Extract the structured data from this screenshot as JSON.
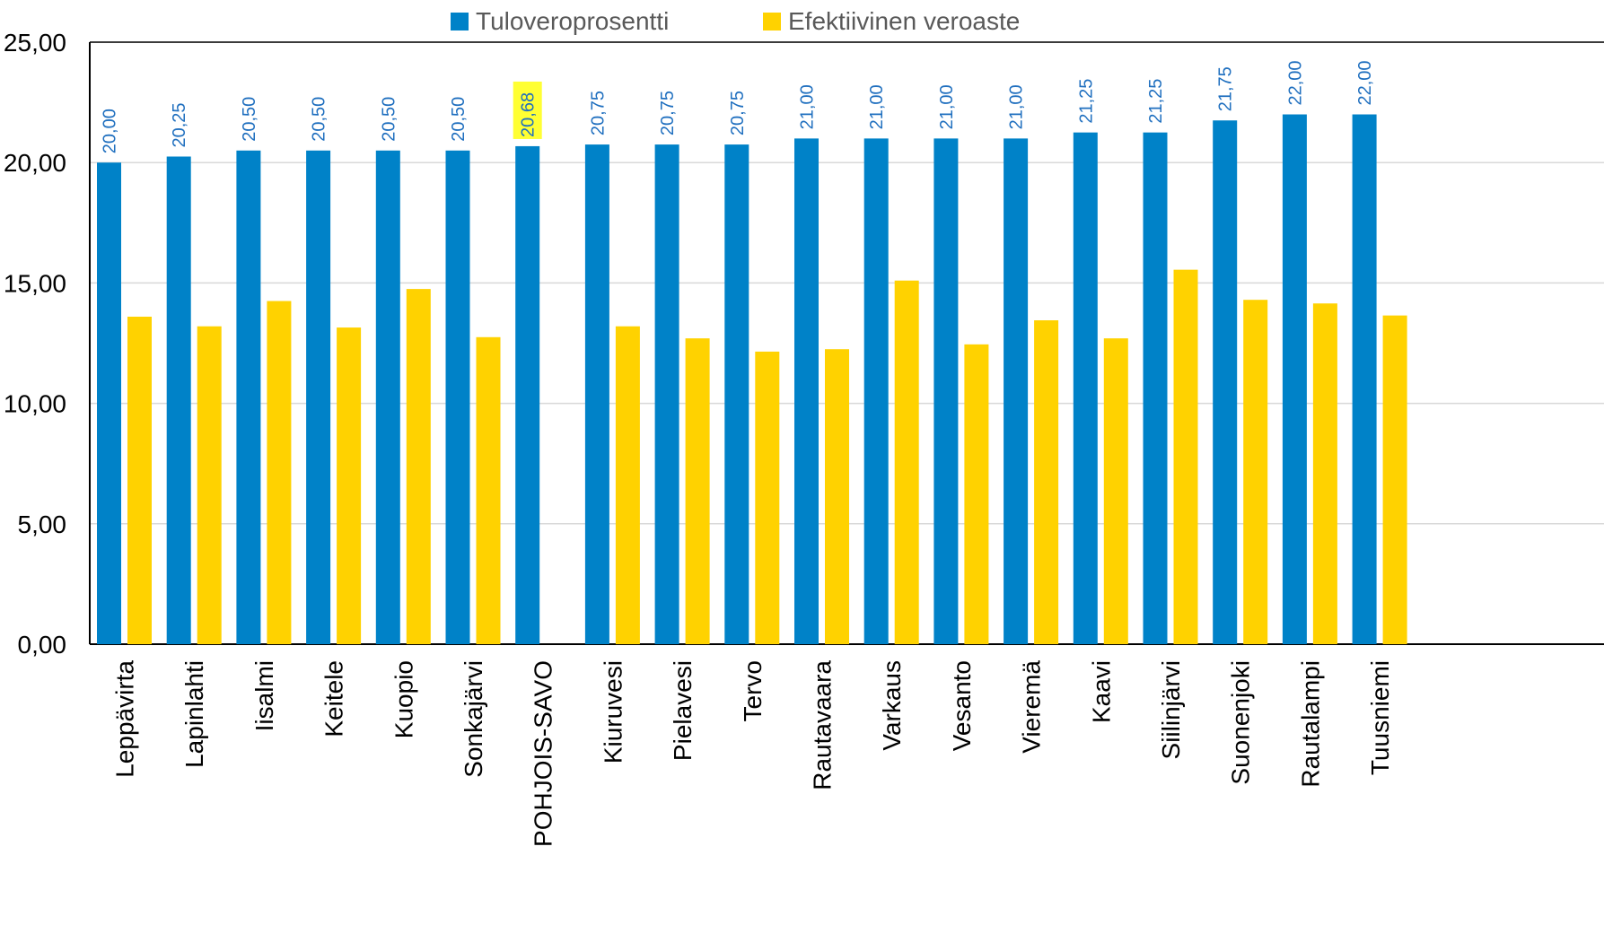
{
  "chart_data": {
    "type": "bar",
    "categories": [
      "Leppävirta",
      "Lapinlahti",
      "Iisalmi",
      "Keitele",
      "Kuopio",
      "Sonkajärvi",
      "POHJOIS-SAVO",
      "Kiuruvesi",
      "Pielavesi",
      "Tervo",
      "Rautavaara",
      "Varkaus",
      "Vesanto",
      "Vieremä",
      "Kaavi",
      "Siilinjärvi",
      "Suonenjoki",
      "Rautalampi",
      "Tuusniemi"
    ],
    "series": [
      {
        "name": "Tuloveroprosentti",
        "color": "#0082C8",
        "values": [
          20.0,
          20.25,
          20.5,
          20.5,
          20.5,
          20.5,
          20.68,
          20.75,
          20.75,
          20.75,
          21.0,
          21.0,
          21.0,
          21.0,
          21.25,
          21.25,
          21.75,
          22.0,
          22.0
        ],
        "labels": [
          "20,00",
          "20,25",
          "20,50",
          "20,50",
          "20,50",
          "20,50",
          "20,68",
          "20,75",
          "20,75",
          "20,75",
          "21,00",
          "21,00",
          "21,00",
          "21,00",
          "21,25",
          "21,25",
          "21,75",
          "22,00",
          "22,00"
        ]
      },
      {
        "name": "Efektiivinen veroaste",
        "color": "#FFD200",
        "values": [
          13.6,
          13.2,
          14.25,
          13.15,
          14.75,
          12.75,
          null,
          13.2,
          12.7,
          12.15,
          12.25,
          15.1,
          12.45,
          13.45,
          12.7,
          15.55,
          14.3,
          14.15,
          13.65
        ]
      }
    ],
    "highlight": {
      "category": "POHJOIS-SAVO",
      "label_background": "#FFFF33"
    },
    "yticks": [
      "0,00",
      "5,00",
      "10,00",
      "15,00",
      "20,00",
      "25,00"
    ],
    "ylim": [
      0,
      25
    ],
    "grid": true,
    "legend": "top-center",
    "title": "",
    "xlabel": "",
    "ylabel": ""
  }
}
